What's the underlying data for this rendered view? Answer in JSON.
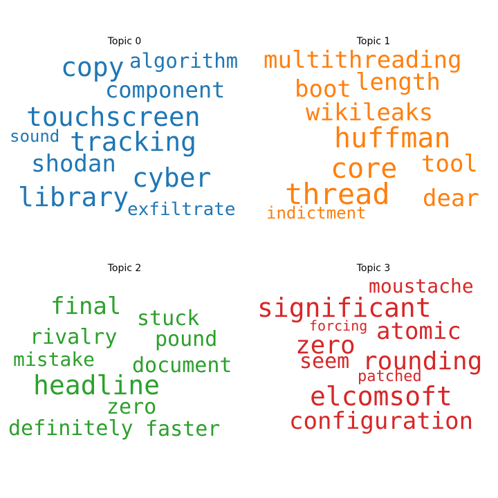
{
  "topics": [
    {
      "title": "Topic 0",
      "color": "#1f77b4",
      "words": [
        "copy",
        "algorithm",
        "component",
        "touchscreen",
        "sound",
        "tracking",
        "shodan",
        "cyber",
        "library",
        "exfiltrate"
      ]
    },
    {
      "title": "Topic 1",
      "color": "#ff7f0e",
      "words": [
        "multithreading",
        "length",
        "boot",
        "wikileaks",
        "huffman",
        "core",
        "tool",
        "thread",
        "dear",
        "indictment"
      ]
    },
    {
      "title": "Topic 2",
      "color": "#2ca02c",
      "words": [
        "final",
        "stuck",
        "rivalry",
        "pound",
        "mistake",
        "document",
        "headline",
        "zero",
        "definitely",
        "faster"
      ]
    },
    {
      "title": "Topic 3",
      "color": "#d62728",
      "words": [
        "moustache",
        "significant",
        "forcing",
        "atomic",
        "zero",
        "seem",
        "rounding",
        "patched",
        "elcomsoft",
        "configuration"
      ]
    }
  ]
}
